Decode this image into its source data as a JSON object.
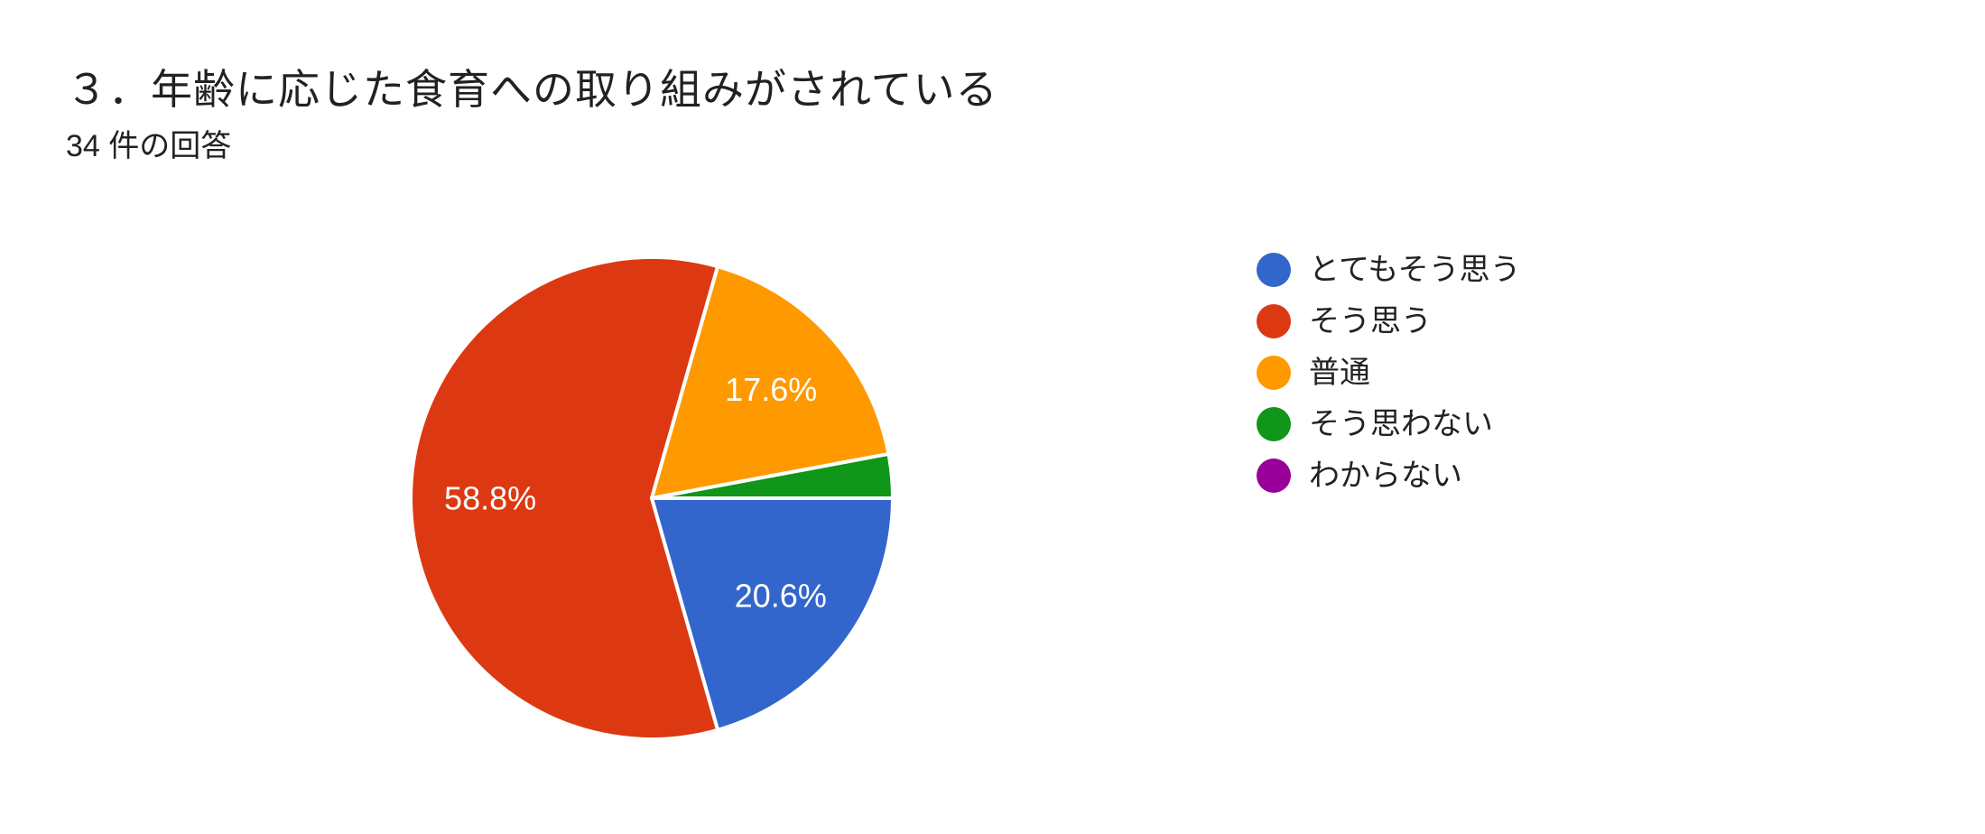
{
  "chart_data": {
    "type": "pie",
    "title": "３．年齢に応じた食育への取り組みがされている",
    "subtitle": "34 件の回答",
    "total_responses": 34,
    "legend_position": "right",
    "start_angle": "3-oclock",
    "direction": "clockwise",
    "label_radius_ratio": 0.67,
    "colors": {
      "background": "#ffffff",
      "slice_separator": "#ffffff",
      "slice_label_text": "#ffffff",
      "title_text": "#212121",
      "legend_text": "#222222"
    },
    "series": [
      {
        "label": "とてもそう思う",
        "count": 7,
        "percent": 20.6,
        "percent_label": "20.6%",
        "color": "#3366cc"
      },
      {
        "label": "そう思う",
        "count": 20,
        "percent": 58.8,
        "percent_label": "58.8%",
        "color": "#dc3912"
      },
      {
        "label": "普通",
        "count": 6,
        "percent": 17.6,
        "percent_label": "17.6%",
        "color": "#ff9900"
      },
      {
        "label": "そう思わない",
        "count": 1,
        "percent": 2.9,
        "percent_label": "",
        "color": "#109618"
      },
      {
        "label": "わからない",
        "count": 0,
        "percent": 0,
        "percent_label": "",
        "color": "#990099"
      }
    ]
  }
}
